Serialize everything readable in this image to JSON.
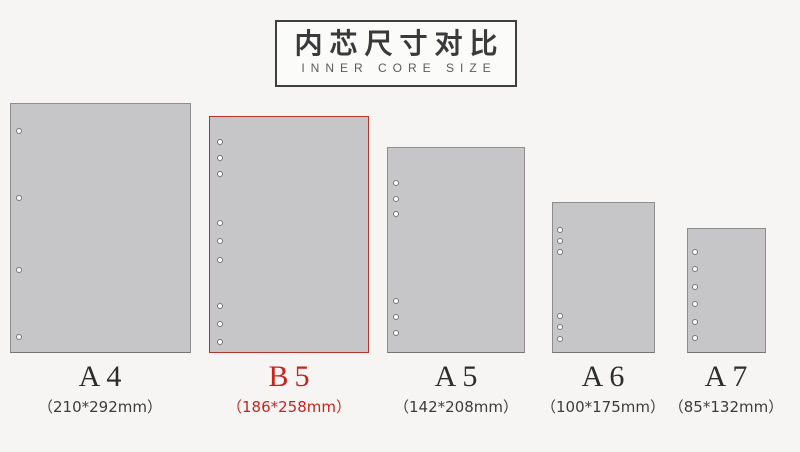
{
  "header": {
    "title": "内芯尺寸对比",
    "subtitle": "INNER CORE SIZE"
  },
  "colors": {
    "background": "#f6f5f3",
    "paper_fill": "#c6c5c7",
    "paper_border": "#8d8d8d",
    "highlight_red": "#b5342c",
    "highlight_text_red": "#c8231f",
    "label_text": "#2d2d2d"
  },
  "papers": [
    {
      "id": "a4",
      "label": "A4",
      "dimensions": "（210*292mm）",
      "binder_holes": 4,
      "highlighted": false
    },
    {
      "id": "b5",
      "label": "B5",
      "dimensions": "（186*258mm）",
      "binder_holes": 9,
      "highlighted": true
    },
    {
      "id": "a5",
      "label": "A5",
      "dimensions": "（142*208mm）",
      "binder_holes": 6,
      "highlighted": false
    },
    {
      "id": "a6",
      "label": "A6",
      "dimensions": "（100*175mm）",
      "binder_holes": 6,
      "highlighted": false
    },
    {
      "id": "a7",
      "label": "A7",
      "dimensions": "（85*132mm）",
      "binder_holes": 6,
      "highlighted": false
    }
  ]
}
